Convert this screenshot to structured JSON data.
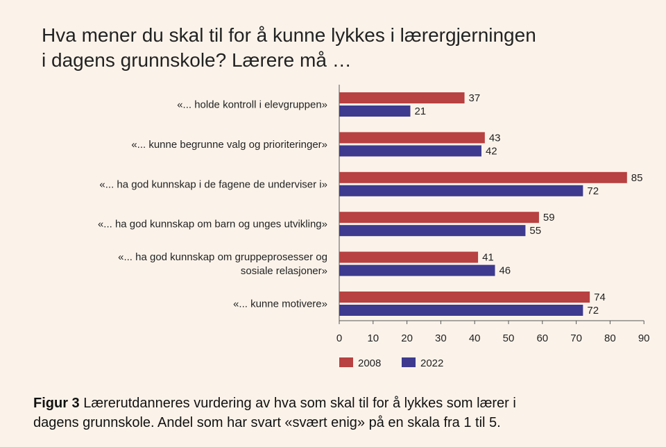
{
  "title_lines": [
    "Hva mener du skal til for å kunne lykkes i lærergjerningen",
    "i dagens grunnskole? Lærere må …"
  ],
  "caption": {
    "label": "Figur 3",
    "text_lines": [
      " Lærerutdanneres vurdering av hva som skal til for å lykkes som lærer i",
      "dagens grunnskole. Andel som har svart «svært enig» på en skala fra 1 til 5."
    ]
  },
  "colors": {
    "2008": "#b84141",
    "2022": "#3d3a8f"
  },
  "chart_data": {
    "type": "bar",
    "orientation": "horizontal",
    "categories": [
      [
        "«... holde kontroll i elevgruppen»"
      ],
      [
        "«... kunne begrunne valg og prioriteringer»"
      ],
      [
        "«... ha god kunnskap i de fagene de underviser i»"
      ],
      [
        "«... ha god kunnskap om barn og unges utvikling»"
      ],
      [
        "«... ha god kunnskap om gruppeprosesser og",
        "sosiale relasjoner»"
      ],
      [
        "«... kunne motivere»"
      ]
    ],
    "series": [
      {
        "name": "2008",
        "values": [
          37,
          43,
          85,
          59,
          41,
          74
        ]
      },
      {
        "name": "2022",
        "values": [
          21,
          42,
          72,
          55,
          46,
          72
        ]
      }
    ],
    "xlim": [
      0,
      90
    ],
    "xticks": [
      0,
      10,
      20,
      30,
      40,
      50,
      60,
      70,
      80,
      90
    ],
    "legend_position": "bottom-left",
    "grid": false
  }
}
